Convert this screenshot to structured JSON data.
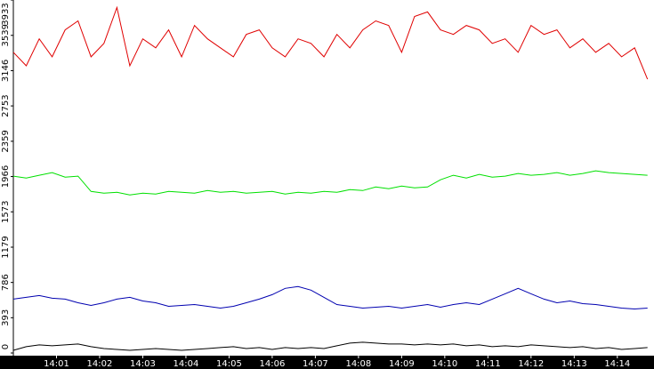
{
  "chart_data": {
    "type": "line",
    "x": [
      0,
      0.3,
      0.6,
      0.9,
      1.2,
      1.5,
      1.8,
      2.1,
      2.4,
      2.7,
      3,
      3.3,
      3.6,
      3.9,
      4.2,
      4.5,
      4.8,
      5.1,
      5.4,
      5.7,
      6,
      6.3,
      6.6,
      6.9,
      7.2,
      7.5,
      7.8,
      8.1,
      8.4,
      8.7,
      9,
      9.3,
      9.6,
      9.9,
      10.2,
      10.5,
      10.8,
      11.1,
      11.4,
      11.7,
      12,
      12.3,
      12.6,
      12.9,
      13.2,
      13.5,
      13.8,
      14.1,
      14.4,
      14.7
    ],
    "series": [
      {
        "color": "#e00000",
        "values": [
          3350,
          3200,
          3500,
          3300,
          3600,
          3700,
          3300,
          3450,
          3850,
          3200,
          3500,
          3400,
          3600,
          3300,
          3650,
          3500,
          3400,
          3300,
          3550,
          3600,
          3400,
          3300,
          3500,
          3450,
          3300,
          3550,
          3400,
          3600,
          3700,
          3650,
          3350,
          3750,
          3800,
          3600,
          3550,
          3650,
          3600,
          3450,
          3500,
          3350,
          3650,
          3550,
          3600,
          3400,
          3500,
          3350,
          3450,
          3300,
          3400,
          3050
        ]
      },
      {
        "color": "#00e000",
        "values": [
          1970,
          1950,
          1980,
          2010,
          1960,
          1970,
          1800,
          1780,
          1790,
          1760,
          1780,
          1770,
          1800,
          1790,
          1780,
          1810,
          1790,
          1800,
          1780,
          1790,
          1800,
          1770,
          1790,
          1780,
          1800,
          1790,
          1820,
          1810,
          1850,
          1830,
          1860,
          1840,
          1850,
          1930,
          1980,
          1950,
          1990,
          1960,
          1970,
          2000,
          1980,
          1990,
          2010,
          1980,
          2000,
          2030,
          2010,
          2000,
          1990,
          1980
        ]
      },
      {
        "color": "#0000b0",
        "values": [
          600,
          620,
          640,
          610,
          600,
          560,
          530,
          560,
          600,
          620,
          580,
          560,
          520,
          530,
          540,
          520,
          500,
          520,
          560,
          600,
          650,
          720,
          740,
          700,
          620,
          540,
          520,
          500,
          510,
          520,
          500,
          520,
          540,
          510,
          540,
          560,
          540,
          600,
          660,
          720,
          660,
          600,
          560,
          580,
          550,
          540,
          520,
          500,
          490,
          500
        ]
      },
      {
        "color": "#000000",
        "values": [
          30,
          70,
          90,
          80,
          90,
          100,
          70,
          50,
          40,
          30,
          40,
          50,
          40,
          30,
          40,
          50,
          60,
          70,
          50,
          60,
          40,
          60,
          50,
          60,
          50,
          80,
          110,
          120,
          110,
          100,
          100,
          90,
          100,
          90,
          100,
          80,
          90,
          70,
          80,
          70,
          90,
          80,
          70,
          60,
          70,
          50,
          60,
          40,
          50,
          60
        ]
      }
    ],
    "xlim": [
      0,
      14.85
    ],
    "xticks": [
      {
        "value": 1,
        "label": "14:01"
      },
      {
        "value": 2,
        "label": "14:02"
      },
      {
        "value": 3,
        "label": "14:03"
      },
      {
        "value": 4,
        "label": "14:04"
      },
      {
        "value": 5,
        "label": "14:05"
      },
      {
        "value": 6,
        "label": "14:06"
      },
      {
        "value": 7,
        "label": "14:07"
      },
      {
        "value": 8,
        "label": "14:08"
      },
      {
        "value": 9,
        "label": "14:09"
      },
      {
        "value": 10,
        "label": "14:10"
      },
      {
        "value": 11,
        "label": "14:11"
      },
      {
        "value": 12,
        "label": "14:12"
      },
      {
        "value": 13,
        "label": "14:13"
      },
      {
        "value": 14,
        "label": "14:14"
      }
    ],
    "ylim": [
      0,
      3933
    ],
    "yticks": [
      0,
      393,
      786,
      1179,
      1573,
      1966,
      2359,
      2753,
      3146,
      3539,
      3933
    ]
  }
}
